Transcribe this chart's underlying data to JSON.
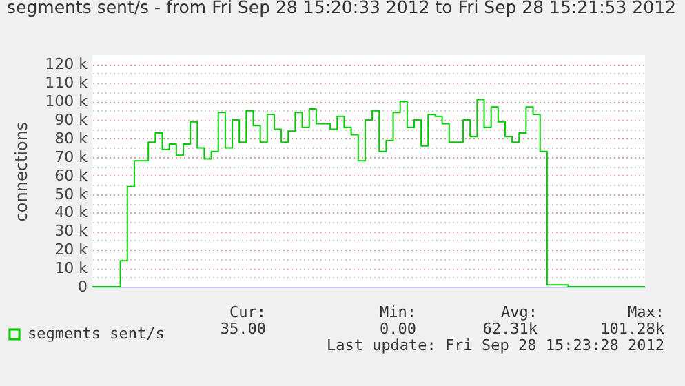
{
  "chart_data": {
    "type": "step",
    "title": "segments sent/s - from Fri Sep 28 15:20:33 2012 to Fri Sep 28 15:21:53 2012",
    "ylabel": "connections",
    "categories": [
      null,
      null,
      null,
      null,
      null,
      null,
      null,
      null,
      null,
      null,
      null,
      null,
      null,
      null,
      null,
      null,
      null,
      null,
      null,
      null,
      null,
      null,
      null,
      null,
      null,
      null,
      null,
      null,
      null,
      null,
      null,
      null,
      null,
      null,
      null,
      null,
      null,
      null,
      null,
      null,
      null,
      null,
      null,
      null,
      null,
      null,
      null,
      null,
      null,
      null,
      null,
      null,
      null,
      null,
      null,
      null,
      null,
      null,
      null,
      null,
      null,
      null,
      null,
      null,
      null,
      null,
      null,
      null,
      null,
      null,
      null,
      null,
      null,
      null,
      null,
      null,
      null,
      null,
      null,
      null
    ],
    "series": [
      {
        "name": "segments sent/s",
        "color": "#00cc00",
        "values": [
          0,
          0,
          0,
          0,
          14000,
          54000,
          68000,
          68000,
          78000,
          83000,
          74000,
          77000,
          71000,
          77000,
          89000,
          75000,
          69000,
          73000,
          94000,
          75000,
          90000,
          78000,
          95000,
          87000,
          78000,
          93000,
          85000,
          78000,
          84000,
          94000,
          86000,
          96000,
          88000,
          88000,
          85000,
          92000,
          86000,
          82000,
          68000,
          90000,
          95000,
          73000,
          79000,
          94000,
          100000,
          86000,
          90000,
          76000,
          93000,
          92000,
          88000,
          78000,
          78000,
          90000,
          81000,
          101000,
          86000,
          97000,
          89000,
          81000,
          78000,
          83000,
          97000,
          93000,
          73000,
          1000,
          1000,
          1000,
          0,
          0,
          0,
          0,
          0,
          0,
          0,
          0,
          0,
          0,
          0,
          0
        ]
      }
    ],
    "ylim": [
      0,
      125000
    ],
    "yticks": [
      0,
      {
        "value": 5000,
        "label": null
      },
      {
        "value": 10000,
        "label": "10 k"
      },
      {
        "value": 15000,
        "label": null
      },
      {
        "value": 20000,
        "label": "20 k"
      },
      {
        "value": 25000,
        "label": null
      },
      {
        "value": 30000,
        "label": "30 k"
      },
      {
        "value": 35000,
        "label": null
      },
      {
        "value": 40000,
        "label": "40 k"
      },
      {
        "value": 45000,
        "label": null
      },
      {
        "value": 50000,
        "label": "50 k"
      },
      {
        "value": 55000,
        "label": null
      },
      {
        "value": 60000,
        "label": "60 k"
      },
      {
        "value": 65000,
        "label": null
      },
      {
        "value": 70000,
        "label": "70 k"
      },
      {
        "value": 75000,
        "label": null
      },
      {
        "value": 80000,
        "label": "80 k"
      },
      {
        "value": 85000,
        "label": null
      },
      {
        "value": 90000,
        "label": "90 k"
      },
      {
        "value": 95000,
        "label": null
      },
      {
        "value": 100000,
        "label": "100 k"
      },
      {
        "value": 105000,
        "label": null
      },
      {
        "value": 110000,
        "label": "110 k"
      },
      {
        "value": 115000,
        "label": null
      },
      {
        "value": 120000,
        "label": "120 k"
      }
    ],
    "grid": "y",
    "legend": "bottom left",
    "tick_labels": "y",
    "annotations": [
      "Cur:",
      "35.00",
      "Min:",
      "0.00",
      "Avg:",
      "62.31k",
      "Max:",
      "101.28k",
      "Last update: Fri Sep 28 15:23:28 2012"
    ]
  }
}
